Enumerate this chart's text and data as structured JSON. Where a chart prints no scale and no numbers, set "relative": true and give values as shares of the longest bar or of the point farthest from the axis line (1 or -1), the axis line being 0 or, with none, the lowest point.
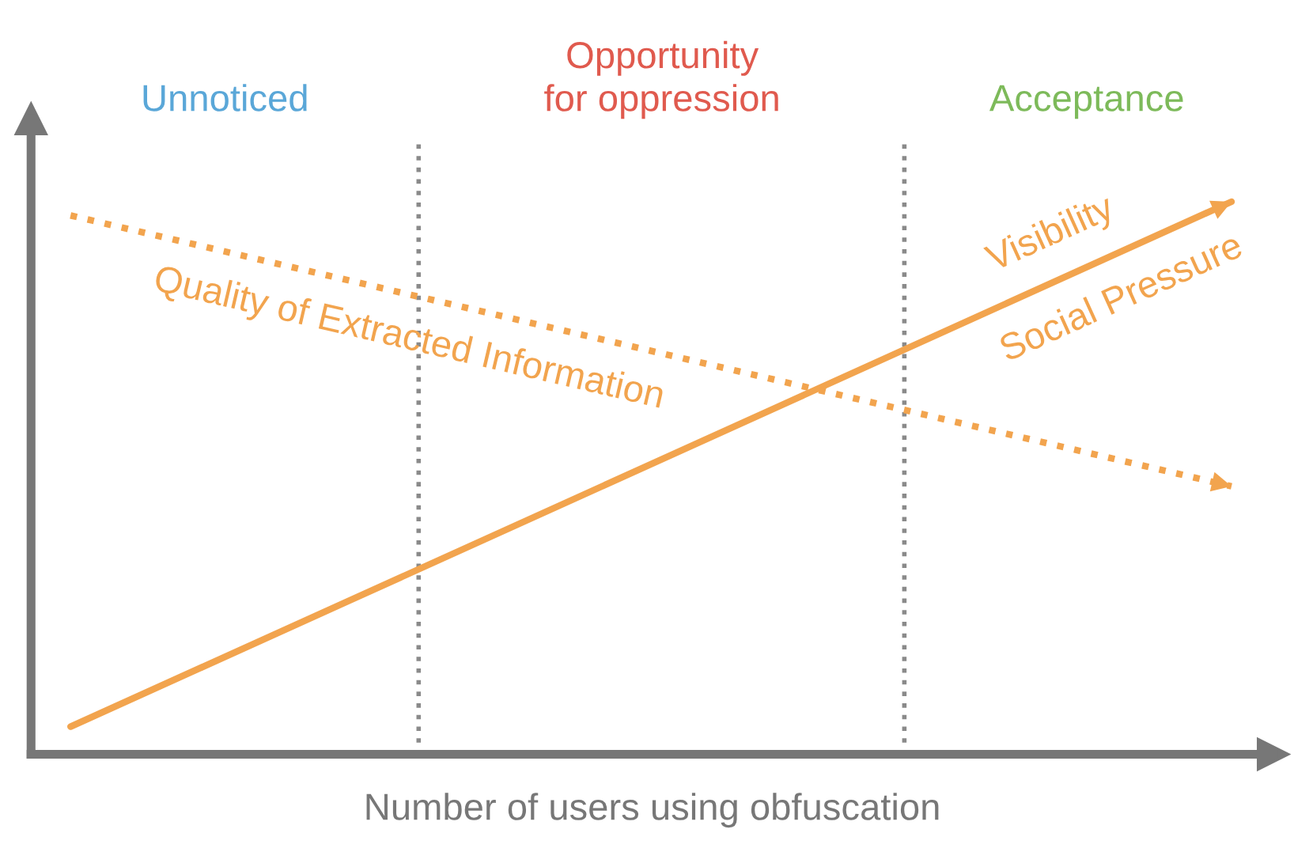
{
  "chart_data": {
    "type": "line",
    "relative": true,
    "xlabel": "Number of users using obfuscation",
    "categories": [
      null,
      null
    ],
    "series": [
      {
        "color": "#f2a44e",
        "values": [
          0.05,
          1
        ],
        "line_style": "solid"
      },
      {
        "color": "#f2a44e",
        "values": [
          0.975,
          0.485
        ],
        "line_style": "dotted"
      }
    ],
    "annotations": [
      "Unnoticed",
      "Opportunity\nfor oppression",
      "Acceptance",
      "Visibility",
      "Social Pressure",
      "Quality of Extracted Information"
    ]
  }
}
